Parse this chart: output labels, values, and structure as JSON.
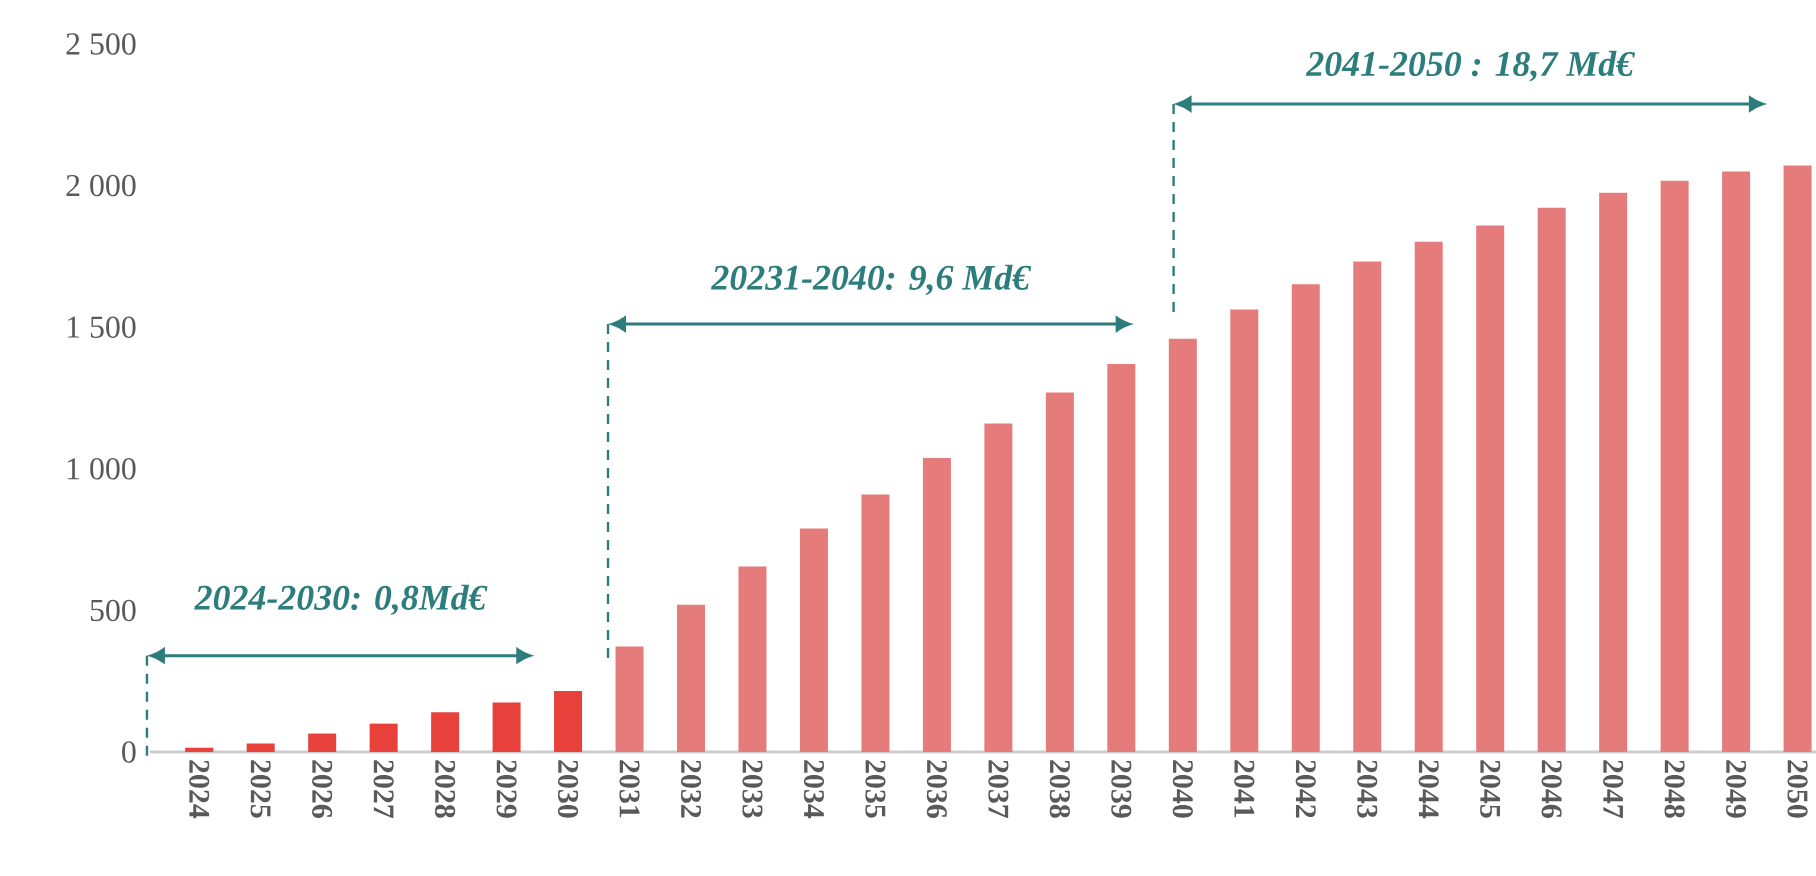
{
  "chart_data": {
    "type": "bar",
    "categories": [
      "2024",
      "2025",
      "2026",
      "2027",
      "2028",
      "2029",
      "2030",
      "2031",
      "2032",
      "2033",
      "2034",
      "2035",
      "2036",
      "2037",
      "2038",
      "2039",
      "2040",
      "2041",
      "2042",
      "2043",
      "2044",
      "2045",
      "2046",
      "2047",
      "2048",
      "2049",
      "2050"
    ],
    "values": [
      15,
      30,
      65,
      100,
      140,
      175,
      215,
      372,
      520,
      655,
      789,
      909,
      1038,
      1160,
      1269,
      1370,
      1459,
      1562,
      1652,
      1732,
      1802,
      1859,
      1922,
      1975,
      2017,
      2050,
      2071
    ],
    "colors": [
      "#e8413c",
      "#e8413c",
      "#e8413c",
      "#e8413c",
      "#e8413c",
      "#e8413c",
      "#e8413c",
      "#e57b7b",
      "#e57b7b",
      "#e57b7b",
      "#e57b7b",
      "#e57b7b",
      "#e57b7b",
      "#e57b7b",
      "#e57b7b",
      "#e57b7b",
      "#e57b7b",
      "#e57b7b",
      "#e57b7b",
      "#e57b7b",
      "#e57b7b",
      "#e57b7b",
      "#e57b7b",
      "#e57b7b",
      "#e57b7b",
      "#e57b7b",
      "#e57b7b"
    ],
    "ylim": [
      0,
      2500
    ],
    "yticks": [
      0,
      500,
      {
        "value": 1000,
        "label": "1 000"
      },
      {
        "value": 1500,
        "label": "1 500"
      },
      {
        "value": 2000,
        "label": "2 000"
      },
      {
        "value": 2500,
        "label": "2 500"
      }
    ],
    "annotations": [
      "2024-2030: 0,8Md€",
      "20231-2040: 9,6 Md€",
      "2041-2050 : 18,7 Md€"
    ]
  }
}
